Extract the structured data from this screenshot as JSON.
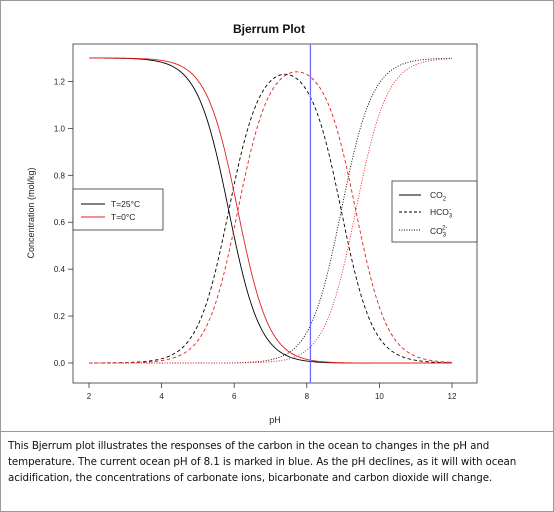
{
  "chart_data": {
    "type": "line",
    "title": "Bjerrum Plot",
    "xlabel": "pH",
    "ylabel": "Concentration (mol/kg)",
    "xlim": [
      2,
      12
    ],
    "ylim": [
      0,
      1.3
    ],
    "x_ticks": [
      "2",
      "4",
      "6",
      "8",
      "10",
      "12"
    ],
    "y_ticks": [
      "0.0",
      "0.2",
      "0.4",
      "0.6",
      "0.8",
      "1.0",
      "1.2"
    ],
    "total_carbon": 1.3,
    "marker_ph": 8.1,
    "marker_color": "#6b6bff",
    "temperature_legend": [
      {
        "label": "T=25°C",
        "color": "#000000"
      },
      {
        "label": "T=0°C",
        "color": "#e02020"
      }
    ],
    "species_legend": [
      {
        "label": "CO",
        "sub": "2",
        "sup": "",
        "style": "solid"
      },
      {
        "label": "HCO",
        "sub": "3",
        "sup": "-",
        "style": "dashed"
      },
      {
        "label": "CO",
        "sub": "3",
        "sup": "2-",
        "style": "dotted"
      }
    ],
    "series": [
      {
        "name": "CO2",
        "temperature": "T=25°C",
        "color": "#000000",
        "style": "solid",
        "pK1": 5.85,
        "pK2": 8.95
      },
      {
        "name": "HCO3-",
        "temperature": "T=25°C",
        "color": "#000000",
        "style": "dashed",
        "pK1": 5.85,
        "pK2": 8.95
      },
      {
        "name": "CO3 2-",
        "temperature": "T=25°C",
        "color": "#000000",
        "style": "dotted",
        "pK1": 5.85,
        "pK2": 8.95
      },
      {
        "name": "CO2",
        "temperature": "T=0°C",
        "color": "#e02020",
        "style": "solid",
        "pK1": 6.1,
        "pK2": 9.35
      },
      {
        "name": "HCO3-",
        "temperature": "T=0°C",
        "color": "#e02020",
        "style": "dashed",
        "pK1": 6.1,
        "pK2": 9.35
      },
      {
        "name": "CO3 2-",
        "temperature": "T=0°C",
        "color": "#e02020",
        "style": "dotted",
        "pK1": 6.1,
        "pK2": 9.35
      }
    ]
  },
  "caption": "This Bjerrum plot illustrates the responses of the carbon in the ocean to changes in the pH and temperature. The current ocean pH of 8.1 is marked in blue. As the pH declines, as it will with ocean acidification, the concentrations of carbonate ions, bicarbonate and carbon dioxide will change."
}
